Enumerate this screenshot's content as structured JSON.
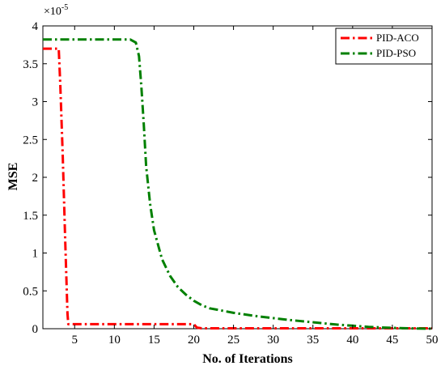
{
  "chart_data": {
    "type": "line",
    "xlabel": "No. of Iterations",
    "ylabel": "MSE",
    "y_multiplier": {
      "base": "×10",
      "exponent": "-5"
    },
    "xlim": [
      1,
      50
    ],
    "ylim": [
      0,
      4
    ],
    "x_ticks": [
      5,
      10,
      15,
      20,
      25,
      30,
      35,
      40,
      45,
      50
    ],
    "y_ticks": [
      0,
      0.5,
      1,
      1.5,
      2,
      2.5,
      3,
      3.5,
      4
    ],
    "x_tick_labels": [
      "5",
      "10",
      "15",
      "20",
      "25",
      "30",
      "35",
      "40",
      "45",
      "50"
    ],
    "y_tick_labels": [
      "0",
      "0.5",
      "1",
      "1.5",
      "2",
      "2.5",
      "3",
      "3.5",
      "4"
    ],
    "legend_position": "top-right",
    "series": [
      {
        "name": "PID-ACO",
        "color": "#ff0000",
        "dash": "dash-dot",
        "x": [
          1,
          3,
          3.2,
          3.5,
          3.8,
          4.1,
          4.2,
          20,
          20.4,
          21,
          50
        ],
        "y": [
          3.7,
          3.7,
          3.2,
          2.3,
          1.2,
          0.2,
          0.06,
          0.06,
          0.015,
          0.005,
          0.005
        ]
      },
      {
        "name": "PID-PSO",
        "color": "#008000",
        "dash": "dash-dot",
        "x": [
          1,
          12,
          12.7,
          13.1,
          13.4,
          13.7,
          14,
          14.5,
          15,
          16,
          17,
          18,
          19,
          20,
          21,
          22,
          23,
          24,
          25,
          26,
          28,
          30,
          32,
          34,
          36,
          38,
          40,
          42,
          44,
          46,
          48,
          50
        ],
        "y": [
          3.82,
          3.82,
          3.78,
          3.6,
          3.2,
          2.7,
          2.15,
          1.65,
          1.3,
          0.92,
          0.7,
          0.55,
          0.45,
          0.37,
          0.31,
          0.27,
          0.25,
          0.23,
          0.21,
          0.195,
          0.165,
          0.14,
          0.115,
          0.095,
          0.075,
          0.055,
          0.04,
          0.025,
          0.015,
          0.008,
          0.003,
          0.001
        ]
      }
    ]
  }
}
